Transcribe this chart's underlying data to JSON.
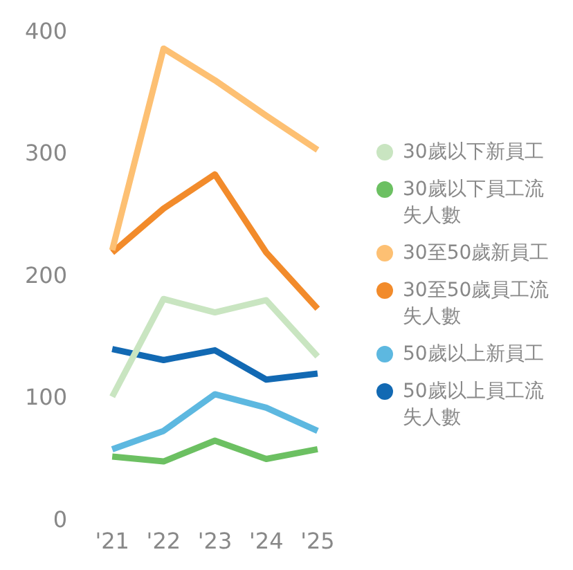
{
  "chart_data": {
    "type": "line",
    "categories": [
      "'21",
      "'22",
      "'23",
      "'24",
      "'25"
    ],
    "ylim": [
      0,
      400
    ],
    "yticks": [
      0,
      100,
      200,
      300,
      400
    ],
    "grid": false,
    "legend": "right",
    "marker": "none",
    "line_style": "solid",
    "series": [
      {
        "name": "30歲以下新員工",
        "color": "#c9e5c1",
        "values": [
          102,
          182,
          171,
          181,
          135
        ]
      },
      {
        "name": "30歲以下員工流失人數",
        "color": "#6cc062",
        "values": [
          53,
          49,
          66,
          51,
          59
        ]
      },
      {
        "name": "30至50歲新員工",
        "color": "#fdc073",
        "values": [
          222,
          387,
          361,
          332,
          304
        ]
      },
      {
        "name": "30至50歲員工流失人數",
        "color": "#f28b2b",
        "values": [
          220,
          256,
          284,
          220,
          174
        ]
      },
      {
        "name": "50歲以上新員工",
        "color": "#5db8e0",
        "values": [
          59,
          74,
          104,
          93,
          74
        ]
      },
      {
        "name": "50歲以上員工流失人數",
        "color": "#1269b3",
        "values": [
          141,
          132,
          140,
          116,
          121
        ]
      }
    ]
  }
}
